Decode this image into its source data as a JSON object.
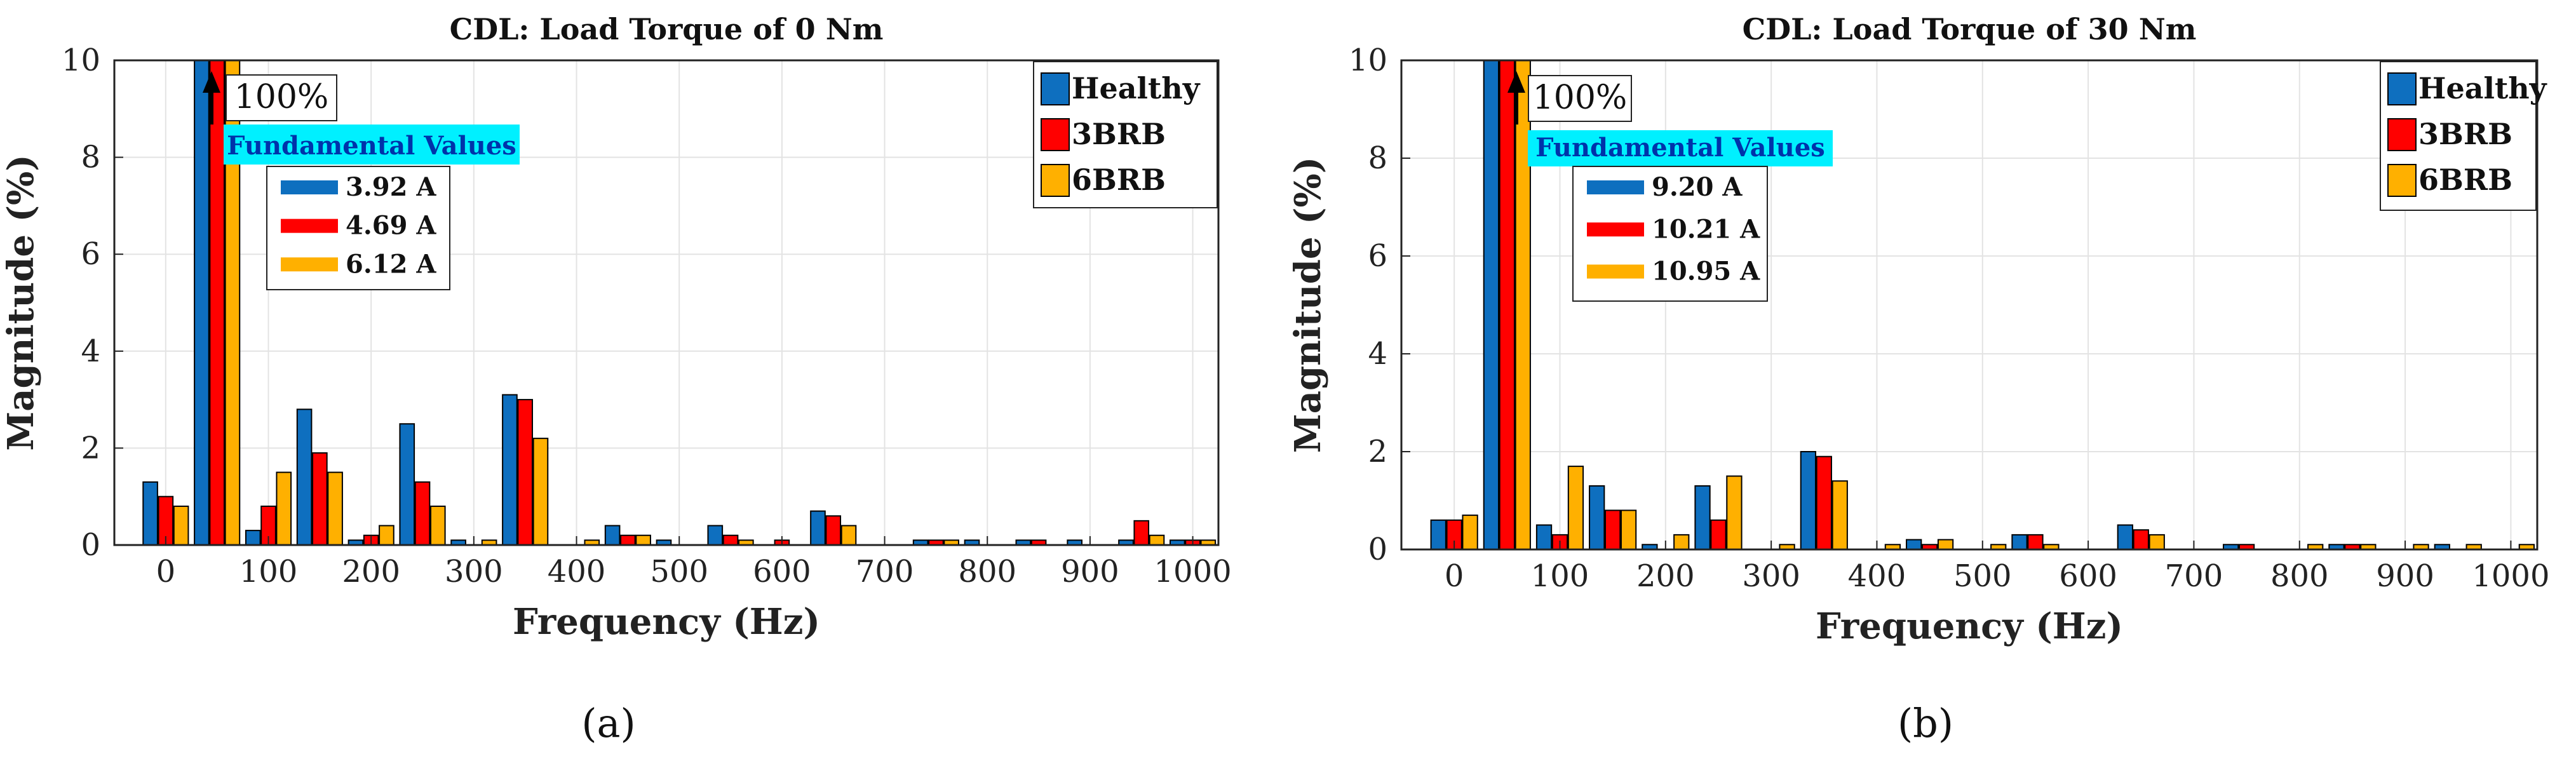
{
  "colors": {
    "Healthy": "#0e6fbf",
    "3BRB": "#ff0000",
    "6BRB": "#ffb000",
    "fund_box": "#00f0ff",
    "grid": "#e3e3e3"
  },
  "chart_data": [
    {
      "type": "bar",
      "title": "CDL: Load Torque of 0 Nm",
      "xlabel": "Frequency (Hz)",
      "ylabel": "Magnitude (%)",
      "ylim": [
        0,
        10
      ],
      "xlim": [
        -50,
        1025
      ],
      "xticks": [
        0,
        100,
        200,
        300,
        400,
        500,
        600,
        700,
        800,
        900,
        1000
      ],
      "yticks": [
        0,
        2,
        4,
        6,
        8,
        10
      ],
      "grid": true,
      "legend_position": "top-right",
      "bar_offset": 15,
      "categories": [
        0,
        50,
        100,
        150,
        200,
        250,
        300,
        350,
        400,
        450,
        500,
        550,
        600,
        650,
        700,
        750,
        800,
        850,
        900,
        950,
        1000
      ],
      "series": [
        {
          "name": "Healthy",
          "values": [
            1.3,
            10,
            0.3,
            2.8,
            0.1,
            2.5,
            0.1,
            3.1,
            0,
            0.4,
            0.1,
            0.4,
            0,
            0.7,
            0,
            0.1,
            0.1,
            0.1,
            0.1,
            0.1,
            0.1
          ]
        },
        {
          "name": "3BRB",
          "values": [
            1.0,
            10,
            0.8,
            1.9,
            0.2,
            1.3,
            0,
            3.0,
            0,
            0.2,
            0,
            0.2,
            0.1,
            0.6,
            0,
            0.1,
            0,
            0.1,
            0,
            0.5,
            0.1
          ]
        },
        {
          "name": "6BRB",
          "values": [
            0.8,
            10,
            1.5,
            1.5,
            0.4,
            0.8,
            0.1,
            2.2,
            0.1,
            0.2,
            0,
            0.1,
            0,
            0.4,
            0,
            0.1,
            0,
            0,
            0,
            0.2,
            0.1
          ]
        }
      ],
      "annotation": "100%",
      "fundamental": {
        "title": "Fundamental Values",
        "values": [
          "3.92 A",
          "4.69 A",
          "6.12 A"
        ]
      },
      "panel_label": "(a)"
    },
    {
      "type": "bar",
      "title": "CDL: Load Torque of 30 Nm",
      "xlabel": "Frequency (Hz)",
      "ylabel": "Magnitude (%)",
      "ylim": [
        0,
        10
      ],
      "xlim": [
        -50,
        1025
      ],
      "xticks": [
        0,
        100,
        200,
        300,
        400,
        500,
        600,
        700,
        800,
        900,
        1000
      ],
      "yticks": [
        0,
        2,
        4,
        6,
        8,
        10
      ],
      "grid": true,
      "legend_position": "top-right",
      "bar_offset": 15,
      "categories": [
        0,
        50,
        100,
        150,
        200,
        250,
        300,
        350,
        400,
        450,
        500,
        550,
        600,
        650,
        700,
        750,
        800,
        850,
        900,
        950,
        1000
      ],
      "series": [
        {
          "name": "Healthy",
          "values": [
            0.6,
            10,
            0.5,
            1.3,
            0.1,
            1.3,
            0,
            2.0,
            0,
            0.2,
            0,
            0.3,
            0,
            0.5,
            0,
            0.1,
            0,
            0.1,
            0,
            0.1,
            0
          ]
        },
        {
          "name": "3BRB",
          "values": [
            0.6,
            10,
            0.3,
            0.8,
            0,
            0.6,
            0,
            1.9,
            0,
            0.1,
            0,
            0.3,
            0,
            0.4,
            0,
            0.1,
            0,
            0.1,
            0,
            0,
            0
          ]
        },
        {
          "name": "6BRB",
          "values": [
            0.7,
            10,
            1.7,
            0.8,
            0.3,
            1.5,
            0.1,
            1.4,
            0.1,
            0.2,
            0.1,
            0.1,
            0,
            0.3,
            0,
            0,
            0.1,
            0.1,
            0.1,
            0.1,
            0.1
          ]
        }
      ],
      "annotation": "100%",
      "fundamental": {
        "title": "Fundamental Values",
        "values": [
          "9.20 A",
          "10.21 A",
          "10.95 A"
        ]
      },
      "panel_label": "(b)"
    }
  ]
}
